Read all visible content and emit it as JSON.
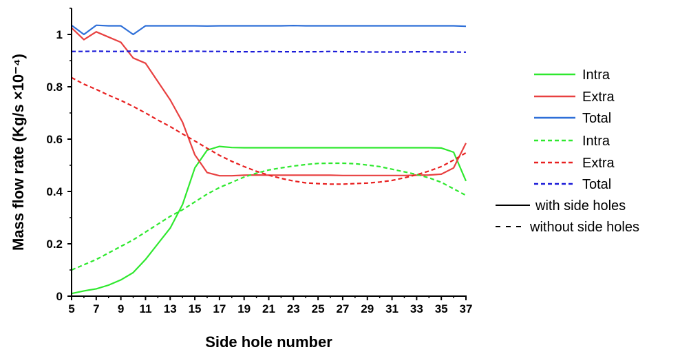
{
  "chart_data": {
    "type": "line",
    "xlabel": "Side hole number",
    "ylabel": "Mass flow rate (Kg/s ×10⁻⁴)",
    "xlim": [
      5,
      37
    ],
    "ylim": [
      0,
      1.1
    ],
    "x_ticks": [
      5,
      7,
      9,
      11,
      13,
      15,
      17,
      19,
      21,
      23,
      25,
      27,
      29,
      31,
      33,
      35,
      37
    ],
    "y_ticks": [
      0,
      0.2,
      0.4,
      0.6,
      0.8,
      1
    ],
    "y_tick_labels": [
      "0",
      "0.2",
      "0.4",
      "0.6",
      "0.8",
      "1"
    ],
    "grid": false,
    "legend_position": "right",
    "x": [
      5,
      6,
      7,
      8,
      9,
      10,
      11,
      12,
      13,
      14,
      15,
      16,
      17,
      18,
      19,
      20,
      21,
      22,
      23,
      24,
      25,
      26,
      27,
      28,
      29,
      30,
      31,
      32,
      33,
      34,
      35,
      36,
      37
    ],
    "series": [
      {
        "name": "Intra",
        "color": "#2ee82e",
        "style": "solid",
        "values": [
          0.01,
          0.02,
          0.028,
          0.042,
          0.062,
          0.09,
          0.14,
          0.2,
          0.26,
          0.35,
          0.49,
          0.558,
          0.572,
          0.568,
          0.567,
          0.567,
          0.567,
          0.567,
          0.567,
          0.567,
          0.567,
          0.567,
          0.567,
          0.567,
          0.567,
          0.567,
          0.567,
          0.567,
          0.567,
          0.567,
          0.566,
          0.55,
          0.44
        ]
      },
      {
        "name": "Extra",
        "color": "#e84040",
        "style": "solid",
        "values": [
          1.025,
          0.98,
          1.01,
          0.99,
          0.97,
          0.91,
          0.89,
          0.82,
          0.75,
          0.665,
          0.54,
          0.472,
          0.46,
          0.46,
          0.462,
          0.463,
          0.462,
          0.462,
          0.462,
          0.462,
          0.462,
          0.462,
          0.461,
          0.461,
          0.461,
          0.461,
          0.461,
          0.461,
          0.462,
          0.463,
          0.466,
          0.49,
          0.585
        ]
      },
      {
        "name": "Total",
        "color": "#2e6fd8",
        "style": "solid",
        "values": [
          1.035,
          1.0,
          1.035,
          1.033,
          1.033,
          1.0,
          1.033,
          1.033,
          1.033,
          1.033,
          1.033,
          1.032,
          1.033,
          1.033,
          1.033,
          1.033,
          1.033,
          1.033,
          1.034,
          1.033,
          1.033,
          1.033,
          1.033,
          1.033,
          1.033,
          1.033,
          1.033,
          1.033,
          1.033,
          1.033,
          1.033,
          1.033,
          1.031
        ]
      },
      {
        "name": "Intra",
        "color": "#2ee82e",
        "style": "dashed",
        "values": [
          0.1,
          0.12,
          0.14,
          0.165,
          0.19,
          0.215,
          0.245,
          0.275,
          0.305,
          0.33,
          0.36,
          0.39,
          0.415,
          0.435,
          0.455,
          0.47,
          0.482,
          0.49,
          0.497,
          0.503,
          0.507,
          0.508,
          0.508,
          0.506,
          0.501,
          0.495,
          0.485,
          0.475,
          0.465,
          0.452,
          0.435,
          0.41,
          0.385
        ]
      },
      {
        "name": "Extra",
        "color": "#e82020",
        "style": "dashed",
        "values": [
          0.835,
          0.81,
          0.79,
          0.768,
          0.748,
          0.725,
          0.7,
          0.673,
          0.648,
          0.62,
          0.593,
          0.565,
          0.538,
          0.515,
          0.495,
          0.477,
          0.462,
          0.45,
          0.44,
          0.433,
          0.43,
          0.428,
          0.428,
          0.43,
          0.432,
          0.436,
          0.442,
          0.452,
          0.464,
          0.478,
          0.495,
          0.52,
          0.548
        ]
      },
      {
        "name": "Total",
        "color": "#1a1ad8",
        "style": "dashed",
        "values": [
          0.935,
          0.935,
          0.936,
          0.935,
          0.935,
          0.936,
          0.936,
          0.935,
          0.935,
          0.935,
          0.936,
          0.935,
          0.935,
          0.934,
          0.934,
          0.934,
          0.935,
          0.934,
          0.934,
          0.934,
          0.934,
          0.935,
          0.934,
          0.934,
          0.933,
          0.933,
          0.933,
          0.933,
          0.934,
          0.934,
          0.933,
          0.933,
          0.932
        ]
      }
    ],
    "legend_notes": [
      {
        "label": "with side holes",
        "style": "solid"
      },
      {
        "label": "without side holes",
        "style": "dashed"
      }
    ]
  }
}
